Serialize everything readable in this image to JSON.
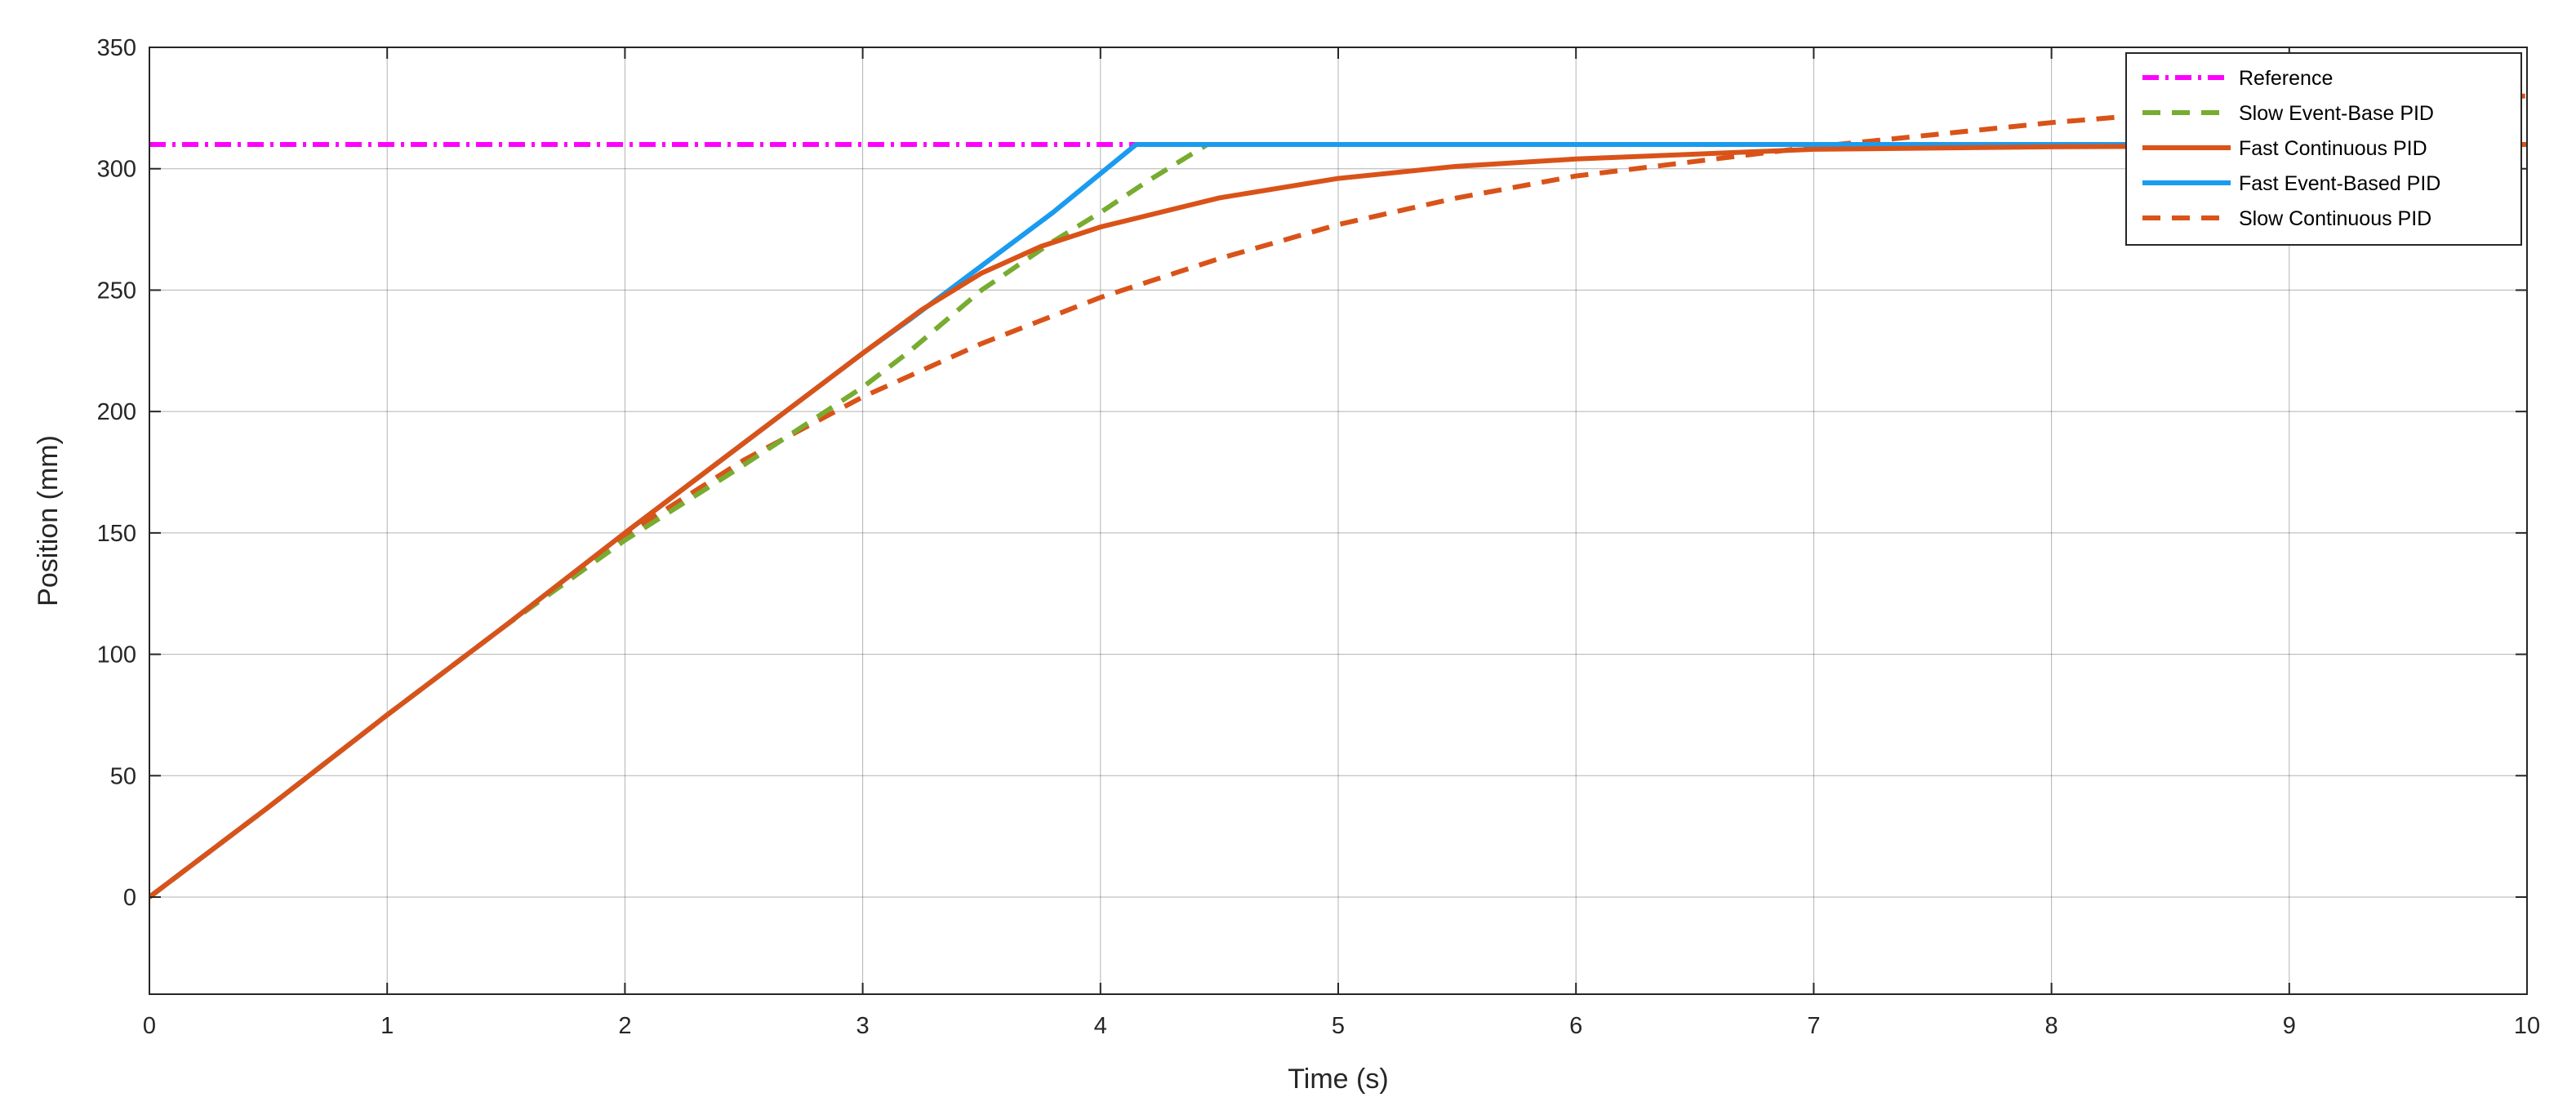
{
  "chart_data": {
    "type": "line",
    "title": "",
    "xlabel": "Time (s)",
    "ylabel": "Position (mm)",
    "xlim": [
      0,
      10
    ],
    "ylim": [
      -40,
      350
    ],
    "xticks": [
      0,
      1,
      2,
      3,
      4,
      5,
      6,
      7,
      8,
      9,
      10
    ],
    "yticks": [
      0,
      50,
      100,
      150,
      200,
      250,
      300,
      350
    ],
    "grid": true,
    "legend_position": "top-right",
    "series": [
      {
        "name": "Reference",
        "color": "#ff00ff",
        "style": "dash-dot",
        "x": [
          0,
          10
        ],
        "y": [
          310,
          310
        ]
      },
      {
        "name": "Slow Event-Base PID",
        "color": "#77ac30",
        "style": "dashed",
        "x": [
          0,
          0.5,
          1,
          1.5,
          2,
          2.5,
          3,
          3.2,
          3.5,
          3.8,
          4,
          4.2,
          4.45,
          5,
          6,
          7,
          8,
          9,
          10
        ],
        "y": [
          0,
          37,
          75,
          112,
          147,
          178,
          210,
          225,
          250,
          270,
          282,
          295,
          310,
          310,
          310,
          310,
          310,
          310,
          310
        ]
      },
      {
        "name": "Fast Continuous PID",
        "color": "#d95319",
        "style": "solid",
        "x": [
          0,
          0.5,
          1,
          1.5,
          2,
          2.5,
          3,
          3.25,
          3.5,
          3.75,
          4,
          4.5,
          5,
          5.5,
          6,
          6.5,
          7,
          8,
          9,
          10
        ],
        "y": [
          0,
          37,
          75,
          112,
          150,
          187,
          224,
          242,
          257,
          268,
          276,
          288,
          296,
          301,
          304,
          306,
          308,
          309,
          309.5,
          310
        ]
      },
      {
        "name": "Fast Event-Based PID",
        "color": "#1a9bef",
        "style": "solid",
        "x": [
          0,
          0.5,
          1,
          1.5,
          2,
          2.5,
          3,
          3.2,
          3.5,
          3.8,
          4.15,
          5,
          6,
          7,
          8,
          9,
          10
        ],
        "y": [
          0,
          37,
          75,
          112,
          150,
          187,
          224,
          238,
          260,
          282,
          310,
          310,
          310,
          310,
          310,
          310,
          310
        ]
      },
      {
        "name": "Slow Continuous PID",
        "color": "#d95319",
        "style": "dashed",
        "x": [
          0,
          0.5,
          1,
          1.5,
          2,
          2.5,
          3,
          3.5,
          4,
          4.5,
          5,
          5.5,
          6,
          6.5,
          7,
          7.5,
          8,
          8.5,
          9,
          9.5,
          10
        ],
        "y": [
          0,
          37,
          75,
          112,
          149,
          180,
          206,
          228,
          247,
          263,
          277,
          288,
          297,
          303,
          309,
          314,
          319,
          323,
          326,
          328,
          330
        ]
      }
    ]
  }
}
